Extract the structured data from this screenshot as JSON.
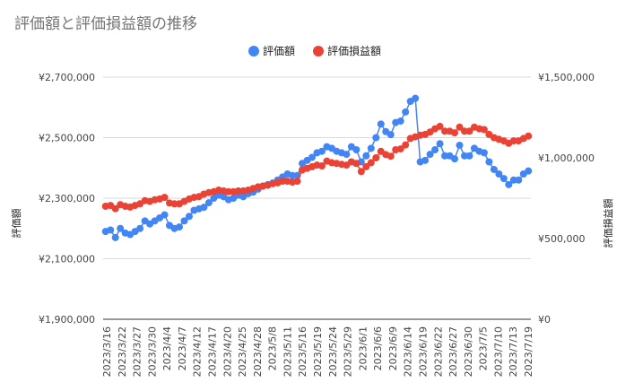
{
  "chart_data": {
    "type": "scatter",
    "title": "評価額と評価損益額の推移",
    "legend_position": "top-center",
    "grid": true,
    "y_left": {
      "label": "評価額",
      "range": [
        1900000,
        2700000
      ],
      "ticks": [
        1900000,
        2100000,
        2300000,
        2500000,
        2700000
      ],
      "tick_labels": [
        "¥1,900,000",
        "¥2,100,000",
        "¥2,300,000",
        "¥2,500,000",
        "¥2,700,000"
      ]
    },
    "y_right": {
      "label": "評価損益額",
      "range": [
        0,
        1500000
      ],
      "ticks": [
        0,
        500000,
        1000000,
        1500000
      ],
      "tick_labels": [
        "¥0",
        "¥500,000",
        "¥1,000,000",
        "¥1,500,000"
      ]
    },
    "x_tick_labels": [
      "2023/3/16",
      "2023/3/22",
      "2023/3/27",
      "2023/3/30",
      "2023/4/4",
      "2023/4/7",
      "2023/4/12",
      "2023/4/17",
      "2023/4/20",
      "2023/4/25",
      "2023/4/28",
      "2023/5/8",
      "2023/5/11",
      "2023/5/16",
      "2023/5/19",
      "2023/5/24",
      "2023/5/29",
      "2023/6/1",
      "2023/6/6",
      "2023/6/9",
      "2023/6/14",
      "2023/6/19",
      "2023/6/22",
      "2023/6/27",
      "2023/6/30",
      "2023/7/5",
      "2023/7/10",
      "2023/7/13",
      "2023/7/19"
    ],
    "series": [
      {
        "name": "評価額",
        "axis": "left",
        "color": "#4285f4",
        "values": [
          2190000,
          2195000,
          2170000,
          2200000,
          2185000,
          2180000,
          2190000,
          2200000,
          2225000,
          2215000,
          2225000,
          2235000,
          2245000,
          2210000,
          2200000,
          2205000,
          2225000,
          2240000,
          2260000,
          2265000,
          2270000,
          2285000,
          2300000,
          2310000,
          2305000,
          2295000,
          2300000,
          2310000,
          2305000,
          2315000,
          2320000,
          2330000,
          2340000,
          2345000,
          2350000,
          2360000,
          2370000,
          2380000,
          2375000,
          2375000,
          2415000,
          2425000,
          2435000,
          2450000,
          2455000,
          2470000,
          2465000,
          2455000,
          2450000,
          2445000,
          2470000,
          2460000,
          2420000,
          2440000,
          2465000,
          2500000,
          2545000,
          2520000,
          2510000,
          2550000,
          2555000,
          2585000,
          2620000,
          2630000,
          2420000,
          2425000,
          2445000,
          2460000,
          2480000,
          2440000,
          2440000,
          2430000,
          2475000,
          2440000,
          2440000,
          2465000,
          2455000,
          2450000,
          2420000,
          2395000,
          2380000,
          2365000,
          2345000,
          2360000,
          2360000,
          2380000,
          2390000
        ]
      },
      {
        "name": "評価損益額",
        "axis": "right",
        "color": "#ea4335",
        "values": [
          700000,
          705000,
          685000,
          710000,
          700000,
          695000,
          705000,
          715000,
          735000,
          730000,
          740000,
          745000,
          755000,
          720000,
          715000,
          715000,
          730000,
          745000,
          755000,
          760000,
          775000,
          785000,
          790000,
          800000,
          795000,
          790000,
          790000,
          795000,
          795000,
          800000,
          810000,
          820000,
          825000,
          830000,
          840000,
          845000,
          855000,
          855000,
          850000,
          855000,
          925000,
          935000,
          945000,
          955000,
          950000,
          980000,
          970000,
          965000,
          960000,
          955000,
          975000,
          965000,
          915000,
          945000,
          970000,
          1000000,
          1040000,
          1020000,
          1010000,
          1050000,
          1055000,
          1080000,
          1120000,
          1130000,
          1140000,
          1145000,
          1160000,
          1180000,
          1195000,
          1165000,
          1165000,
          1155000,
          1190000,
          1165000,
          1165000,
          1190000,
          1180000,
          1175000,
          1145000,
          1125000,
          1115000,
          1105000,
          1090000,
          1105000,
          1105000,
          1120000,
          1135000
        ]
      }
    ]
  }
}
